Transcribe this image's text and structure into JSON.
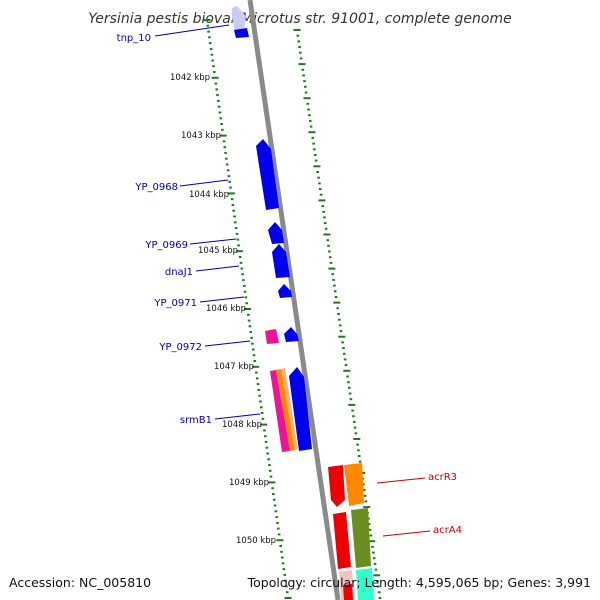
{
  "title": "Yersinia pestis biovar Microtus str. 91001, complete genome",
  "accession_text": "Accession: NC_005810",
  "topology_text": "Topology: circular; Length: 4,595,065 bp; Genes: 3,991",
  "colors": {
    "backbone": "#888888",
    "tick": "#1f7a1f",
    "forward_label": "#0000aa",
    "reverse_label": "#cc0000",
    "blue_gene": "#0000ee",
    "light_gene": "#c8ccf5",
    "magenta_gene": "#ee1199",
    "red_gene": "#ee0000",
    "orange_gene": "#ff8800",
    "olive_gene": "#6b8e23",
    "aqua_gene": "#33ffcc"
  },
  "kbp_labels": [
    {
      "text": "1042 kbp",
      "pos": 1042
    },
    {
      "text": "1043 kbp",
      "pos": 1043
    },
    {
      "text": "1044 kbp",
      "pos": 1044
    },
    {
      "text": "1045 kbp",
      "pos": 1045
    },
    {
      "text": "1046 kbp",
      "pos": 1046
    },
    {
      "text": "1047 kbp",
      "pos": 1047
    },
    {
      "text": "1048 kbp",
      "pos": 1048
    },
    {
      "text": "1049 kbp",
      "pos": 1049
    },
    {
      "text": "1050 kbp",
      "pos": 1050
    }
  ],
  "gene_labels": [
    {
      "text": "tnp_10",
      "strand": "forward"
    },
    {
      "text": "YP_0968",
      "strand": "forward"
    },
    {
      "text": "YP_0969",
      "strand": "forward"
    },
    {
      "text": "dnaJ1",
      "strand": "forward"
    },
    {
      "text": "YP_0971",
      "strand": "forward"
    },
    {
      "text": "YP_0972",
      "strand": "forward"
    },
    {
      "text": "srmB1",
      "strand": "forward"
    },
    {
      "text": "acrR3",
      "strand": "reverse"
    },
    {
      "text": "acrA4",
      "strand": "reverse"
    }
  ]
}
